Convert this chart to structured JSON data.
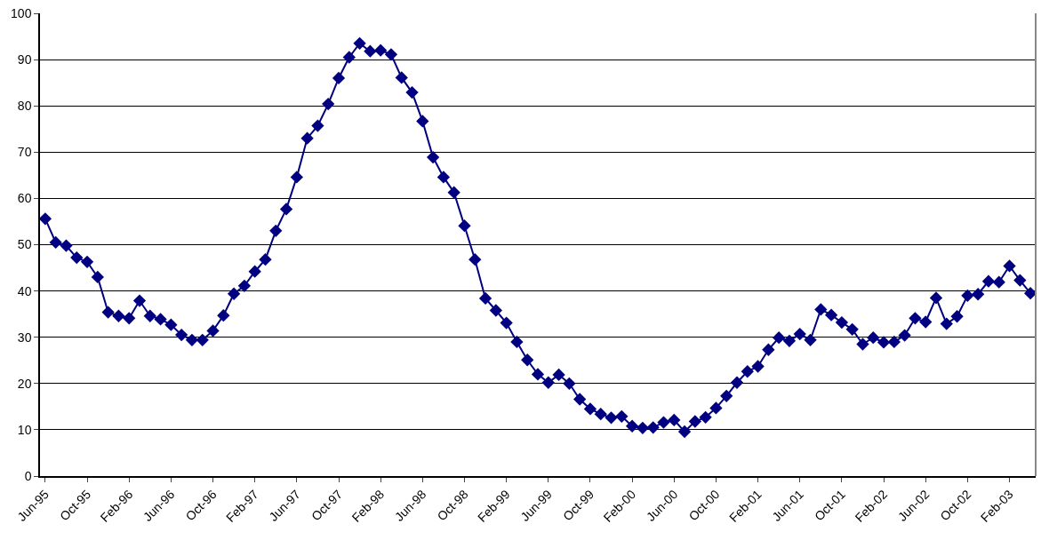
{
  "chart_data": {
    "type": "line",
    "categories": [
      "Jun-95",
      null,
      null,
      null,
      "Oct-95",
      null,
      null,
      null,
      "Feb-96",
      null,
      null,
      null,
      "Jun-96",
      null,
      null,
      null,
      "Oct-96",
      null,
      null,
      null,
      "Feb-97",
      null,
      null,
      null,
      "Jun-97",
      null,
      null,
      null,
      "Oct-97",
      null,
      null,
      null,
      "Feb-98",
      null,
      null,
      null,
      "Jun-98",
      null,
      null,
      null,
      "Oct-98",
      null,
      null,
      null,
      "Feb-99",
      null,
      null,
      null,
      "Jun-99",
      null,
      null,
      null,
      "Oct-99",
      null,
      null,
      null,
      "Feb-00",
      null,
      null,
      null,
      "Jun-00",
      null,
      null,
      null,
      "Oct-00",
      null,
      null,
      null,
      "Feb-01",
      null,
      null,
      null,
      "Jun-01",
      null,
      null,
      null,
      "Oct-01",
      null,
      null,
      null,
      "Feb-02",
      null,
      null,
      null,
      "Jun-02",
      null,
      null,
      null,
      "Oct-02",
      null,
      null,
      null,
      "Feb-03",
      null,
      null
    ],
    "series": [
      {
        "color": "#000080",
        "values": [
          55.6,
          50.5,
          49.8,
          47.2,
          46.3,
          43.0,
          35.4,
          34.6,
          34.1,
          37.9,
          34.6,
          33.9,
          32.7,
          30.5,
          29.4,
          29.4,
          31.4,
          34.7,
          39.4,
          41.1,
          44.2,
          46.8,
          53.0,
          57.7,
          64.6,
          73.0,
          75.7,
          80.4,
          86.0,
          90.5,
          93.5,
          91.8,
          92.0,
          91.1,
          86.1,
          82.9,
          76.7,
          68.9,
          64.6,
          61.3,
          54.1,
          46.8,
          38.4,
          35.8,
          33.1,
          29.0,
          25.1,
          22.0,
          20.2,
          21.9,
          20.0,
          16.6,
          14.5,
          13.4,
          12.6,
          12.9,
          10.8,
          10.4,
          10.5,
          11.6,
          12.1,
          9.6,
          11.8,
          12.7,
          14.7,
          17.3,
          20.2,
          22.6,
          23.7,
          27.3,
          29.9,
          29.2,
          30.7,
          29.4,
          36.0,
          34.8,
          33.2,
          31.7,
          28.5,
          29.9,
          28.9,
          29.0,
          30.4,
          34.1,
          33.3,
          38.5,
          32.9,
          34.5,
          39.0,
          39.3,
          42.1,
          41.9,
          45.4,
          42.3,
          39.5
        ]
      }
    ],
    "ylim": [
      0,
      100
    ],
    "yticks": [
      0,
      10,
      20,
      30,
      40,
      50,
      60,
      70,
      80,
      90,
      100
    ],
    "grid": "y",
    "marker": "diamond",
    "line_style": "solid"
  }
}
